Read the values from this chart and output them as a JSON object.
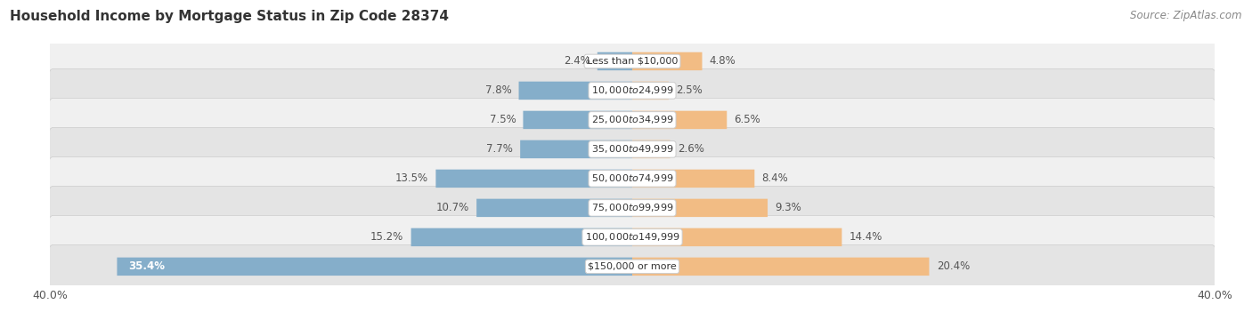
{
  "title": "Household Income by Mortgage Status in Zip Code 28374",
  "source": "Source: ZipAtlas.com",
  "categories": [
    "Less than $10,000",
    "$10,000 to $24,999",
    "$25,000 to $34,999",
    "$35,000 to $49,999",
    "$50,000 to $74,999",
    "$75,000 to $99,999",
    "$100,000 to $149,999",
    "$150,000 or more"
  ],
  "without_mortgage": [
    2.4,
    7.8,
    7.5,
    7.7,
    13.5,
    10.7,
    15.2,
    35.4
  ],
  "with_mortgage": [
    4.8,
    2.5,
    6.5,
    2.6,
    8.4,
    9.3,
    14.4,
    20.4
  ],
  "without_mortgage_color": "#85AECA",
  "with_mortgage_color": "#F2BC84",
  "row_bg_light": "#F0F0F0",
  "row_bg_dark": "#E4E4E4",
  "row_border": "#CCCCCC",
  "axis_limit": 40.0,
  "title_fontsize": 11,
  "source_fontsize": 8.5,
  "tick_fontsize": 9,
  "bar_label_fontsize": 8.5,
  "category_fontsize": 8,
  "inner_label_color": "#FFFFFF",
  "outer_label_color": "#555555"
}
